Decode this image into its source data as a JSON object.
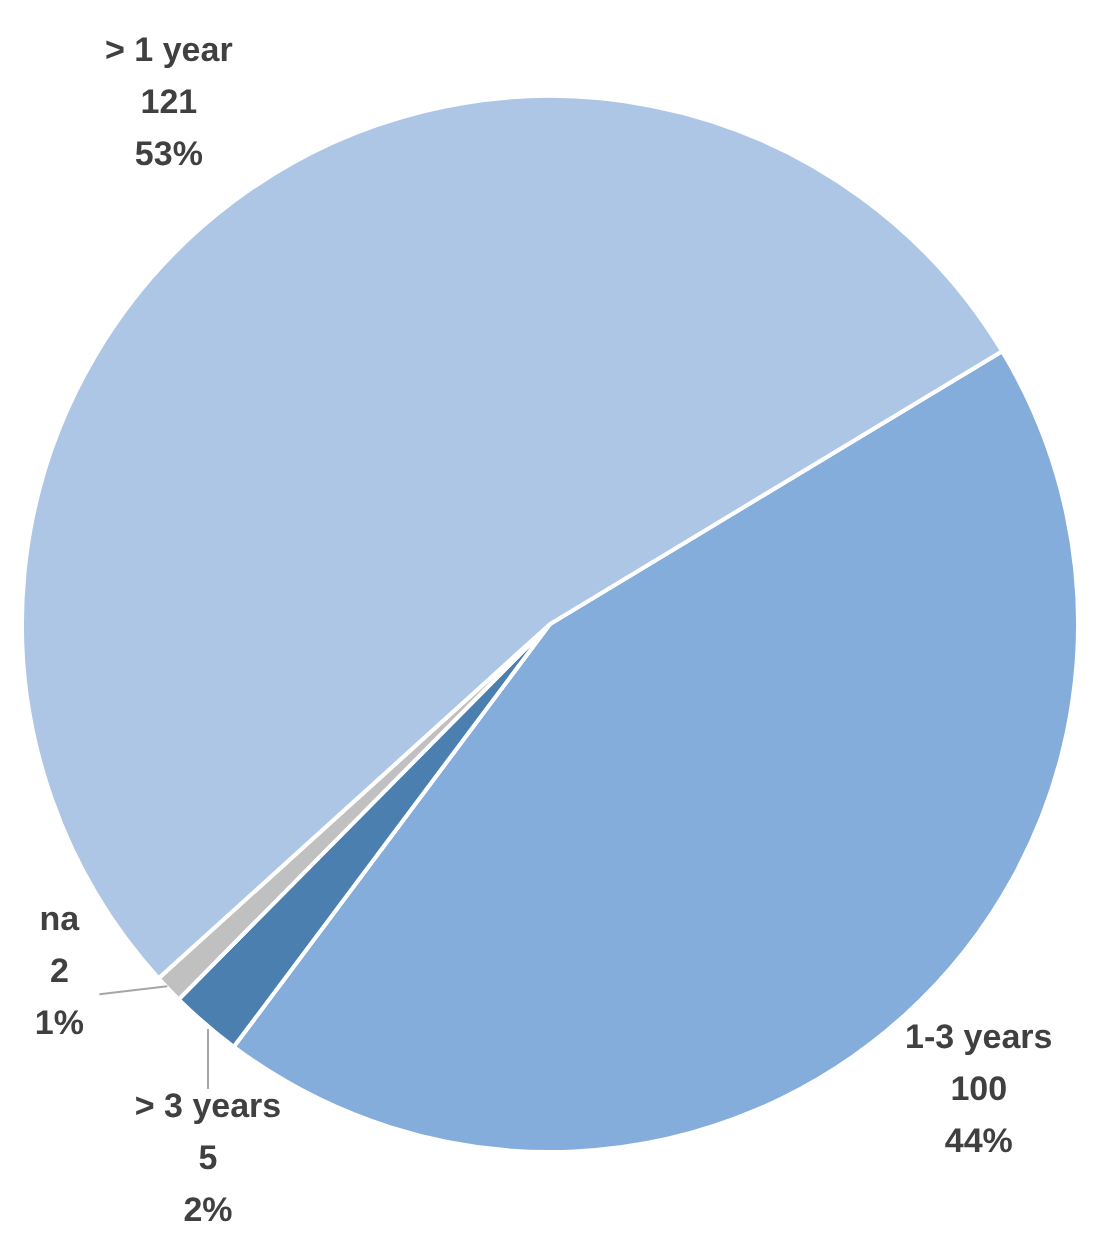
{
  "chart_data": {
    "type": "pie",
    "categories": [
      "1-3 years",
      "> 3 years",
      "na",
      "> 1 year"
    ],
    "values": [
      100,
      5,
      2,
      121
    ],
    "colors": [
      "#84addc",
      "#4a7fb0",
      "#c0c0c0",
      "#aec6e6"
    ],
    "value_labels": [
      "100\n44%",
      "5\n2%",
      "2\n1%",
      "121\n53%"
    ]
  }
}
